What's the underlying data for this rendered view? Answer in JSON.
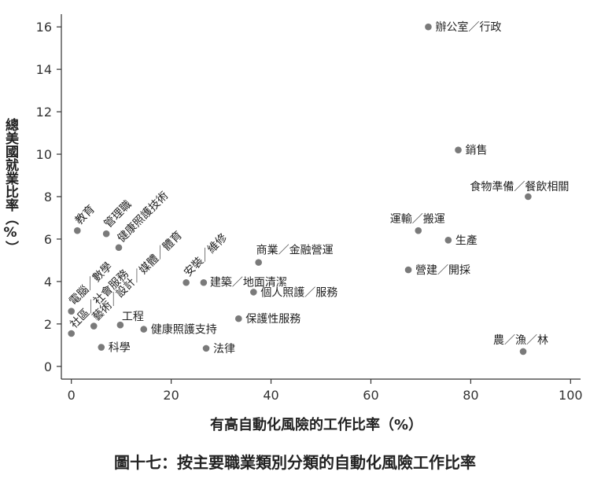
{
  "chart_data": {
    "type": "scatter",
    "title": "",
    "xlabel": "有高自動化風險的工作比率（%）",
    "ylabel": "總美國就業比率（%）",
    "xlim": [
      -2,
      102
    ],
    "ylim": [
      -0.6,
      16.6
    ],
    "xticks": [
      0,
      20,
      40,
      60,
      80,
      100
    ],
    "yticks": [
      0,
      2,
      4,
      6,
      8,
      10,
      12,
      14,
      16
    ],
    "xtick_labels": [
      "0",
      "20",
      "40",
      "60",
      "80",
      "100"
    ],
    "ytick_labels": [
      "0",
      "2",
      "4",
      "6",
      "8",
      "10",
      "12",
      "14",
      "16"
    ],
    "grid": false,
    "marker_color": "#7a7a7a",
    "points": [
      {
        "label": "辦公室／行政",
        "x": 71.5,
        "y": 16.0
      },
      {
        "label": "銷售",
        "x": 77.5,
        "y": 10.2
      },
      {
        "label": "食物準備／餐飲相關",
        "x": 91.5,
        "y": 8.0
      },
      {
        "label": "運輸／搬運",
        "x": 69.5,
        "y": 6.4
      },
      {
        "label": "生產",
        "x": 75.5,
        "y": 5.95
      },
      {
        "label": "營建／開採",
        "x": 67.5,
        "y": 4.55
      },
      {
        "label": "農／漁／林",
        "x": 90.5,
        "y": 0.7
      },
      {
        "label": "商業／金融營運",
        "x": 37.5,
        "y": 4.9
      },
      {
        "label": "建築／地面清潔",
        "x": 26.5,
        "y": 3.95
      },
      {
        "label": "個人照護／服務",
        "x": 36.5,
        "y": 3.5
      },
      {
        "label": "保護性服務",
        "x": 33.5,
        "y": 2.25
      },
      {
        "label": "法律",
        "x": 27.0,
        "y": 0.85
      },
      {
        "label": "健康照護支持",
        "x": 14.5,
        "y": 1.75
      },
      {
        "label": "工程",
        "x": 9.8,
        "y": 1.95
      },
      {
        "label": "科學",
        "x": 6.0,
        "y": 0.9
      },
      {
        "label": "教育",
        "x": 1.2,
        "y": 6.4
      },
      {
        "label": "管理職",
        "x": 7.0,
        "y": 6.25
      },
      {
        "label": "健康照護技術",
        "x": 9.5,
        "y": 5.6
      },
      {
        "label": "電腦／數學",
        "x": 0.0,
        "y": 2.6
      },
      {
        "label": "社區／社會服務",
        "x": 0.0,
        "y": 1.55
      },
      {
        "label": "藝術／設計／媒體／體育",
        "x": 4.5,
        "y": 1.9
      },
      {
        "label": "安裝／維修",
        "x": 23.0,
        "y": 3.95
      }
    ]
  },
  "caption": "圖十七：按主要職業類別分類的自動化風險工作比率"
}
